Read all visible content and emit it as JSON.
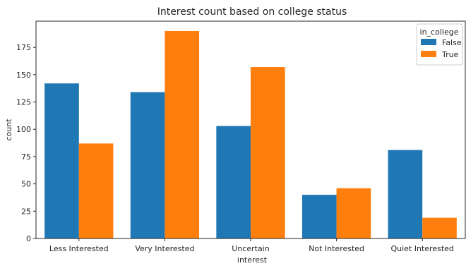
{
  "chart_data": {
    "type": "bar",
    "title": "Interest count based on college status",
    "xlabel": "interest",
    "ylabel": "count",
    "categories": [
      "Less Interested",
      "Very Interested",
      "Uncertain",
      "Not Interested",
      "Quiet Interested"
    ],
    "series": [
      {
        "name": "False",
        "color": "#1f77b4",
        "values": [
          142,
          134,
          103,
          40,
          81
        ]
      },
      {
        "name": "True",
        "color": "#ff7f0e",
        "values": [
          87,
          190,
          157,
          46,
          19
        ]
      }
    ],
    "ylim": [
      0,
      199
    ],
    "yticks": [
      "0",
      "25",
      "50",
      "75",
      "100",
      "125",
      "150",
      "175"
    ],
    "grid": false,
    "legend": {
      "title": "in_college",
      "position": "top-right"
    }
  }
}
